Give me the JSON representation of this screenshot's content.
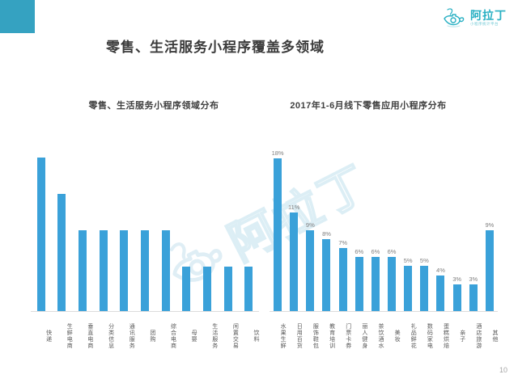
{
  "slide": {
    "title": "零售、生活服务小程序覆盖多领域",
    "page_number": "10",
    "logo": {
      "brand": "阿拉丁",
      "tagline": "小程序统计平台",
      "brand_color": "#29b0c3"
    },
    "watermark_text": "阿拉丁"
  },
  "colors": {
    "accent_block": "#35a2c1",
    "bar": "#3aa1d9",
    "title_text": "#3b3b3b",
    "axis_label": "#595959",
    "value_label": "#7f7f7f",
    "watermark": "#d9edf4"
  },
  "chart_data": [
    {
      "type": "bar",
      "title": "零售、生活服务小程序领域分布",
      "categories": [
        "快递",
        "生鲜电商",
        "垂直电商",
        "分类信息",
        "通讯服务",
        "团购",
        "综合电商",
        "母婴",
        "生活服务",
        "闲置交易",
        "饮料"
      ],
      "values": [
        38,
        29,
        20,
        20,
        20,
        20,
        20,
        11,
        11,
        11,
        11
      ],
      "value_note": "no data labels shown; values estimated from bar heights (relative units)",
      "data_labels": false,
      "ylim": [
        0,
        40
      ],
      "grid": false,
      "legend": false
    },
    {
      "type": "bar",
      "title": "2017年1-6月线下零售应用小程序分布",
      "categories": [
        "水果生鲜",
        "日用百货",
        "服饰鞋包",
        "教育培训",
        "门票卡券",
        "丽人健身",
        "茶饮酒水",
        "美妆",
        "礼品鲜花",
        "数码家电",
        "蛋糕烘焙",
        "亲子",
        "酒店旅游",
        "其他"
      ],
      "values": [
        18,
        11,
        9,
        8,
        7,
        6,
        6,
        6,
        5,
        5,
        4,
        3,
        3,
        9
      ],
      "labels": [
        "18%",
        "11%",
        "9%",
        "8%",
        "7%",
        "6%",
        "6%",
        "6%",
        "5%",
        "5%",
        "4%",
        "3%",
        "3%",
        "9%"
      ],
      "data_labels": true,
      "ylim": [
        0,
        18
      ],
      "grid": false,
      "legend": false
    }
  ]
}
